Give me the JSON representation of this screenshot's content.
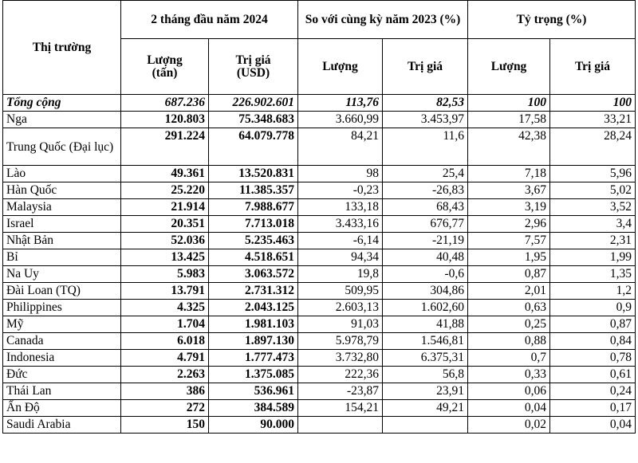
{
  "header": {
    "market": "Thị trường",
    "period": "2 tháng đầu năm 2024",
    "compare": "So với cùng kỳ năm 2023 (%)",
    "share": "Tỷ trọng (%)",
    "qty_line1": "Lượng",
    "qty_line2": "(tấn)",
    "val_line1": "Trị giá",
    "val_line2": "(USD)",
    "qty": "Lượng",
    "val": "Trị giá"
  },
  "rows": [
    {
      "market": "Tổng cộng",
      "qty": "687.236",
      "value": "226.902.601",
      "chg_qty": "113,76",
      "chg_val": "82,53",
      "share_qty": "100",
      "share_val": "100"
    },
    {
      "market": "Nga",
      "qty": "120.803",
      "value": "75.348.683",
      "chg_qty": "3.660,99",
      "chg_val": "3.453,97",
      "share_qty": "17,58",
      "share_val": "33,21"
    },
    {
      "market": "Trung Quốc (Đại lục)",
      "qty": "291.224",
      "value": "64.079.778",
      "chg_qty": "84,21",
      "chg_val": "11,6",
      "share_qty": "42,38",
      "share_val": "28,24"
    },
    {
      "market": "Lào",
      "qty": "49.361",
      "value": "13.520.831",
      "chg_qty": "98",
      "chg_val": "25,4",
      "share_qty": "7,18",
      "share_val": "5,96"
    },
    {
      "market": "Hàn Quốc",
      "qty": "25.220",
      "value": "11.385.357",
      "chg_qty": "-0,23",
      "chg_val": "-26,83",
      "share_qty": "3,67",
      "share_val": "5,02"
    },
    {
      "market": "Malaysia",
      "qty": "21.914",
      "value": "7.988.677",
      "chg_qty": "133,18",
      "chg_val": "68,43",
      "share_qty": "3,19",
      "share_val": "3,52"
    },
    {
      "market": "Israel",
      "qty": "20.351",
      "value": "7.713.018",
      "chg_qty": "3.433,16",
      "chg_val": "676,77",
      "share_qty": "2,96",
      "share_val": "3,4"
    },
    {
      "market": "Nhật Bản",
      "qty": "52.036",
      "value": "5.235.463",
      "chg_qty": "-6,14",
      "chg_val": "-21,19",
      "share_qty": "7,57",
      "share_val": "2,31"
    },
    {
      "market": "Bỉ",
      "qty": "13.425",
      "value": "4.518.651",
      "chg_qty": "94,34",
      "chg_val": "40,48",
      "share_qty": "1,95",
      "share_val": "1,99"
    },
    {
      "market": "Na Uy",
      "qty": "5.983",
      "value": "3.063.572",
      "chg_qty": "19,8",
      "chg_val": "-0,6",
      "share_qty": "0,87",
      "share_val": "1,35"
    },
    {
      "market": "Đài Loan (TQ)",
      "qty": "13.791",
      "value": "2.731.312",
      "chg_qty": "509,95",
      "chg_val": "304,86",
      "share_qty": "2,01",
      "share_val": "1,2"
    },
    {
      "market": "Philippines",
      "qty": "4.325",
      "value": "2.043.125",
      "chg_qty": "2.603,13",
      "chg_val": "1.602,60",
      "share_qty": "0,63",
      "share_val": "0,9"
    },
    {
      "market": "Mỹ",
      "qty": "1.704",
      "value": "1.981.103",
      "chg_qty": "91,03",
      "chg_val": "41,88",
      "share_qty": "0,25",
      "share_val": "0,87"
    },
    {
      "market": "Canada",
      "qty": "6.018",
      "value": "1.897.130",
      "chg_qty": "5.978,79",
      "chg_val": "1.546,81",
      "share_qty": "0,88",
      "share_val": "0,84"
    },
    {
      "market": "Indonesia",
      "qty": "4.791",
      "value": "1.777.473",
      "chg_qty": "3.732,80",
      "chg_val": "6.375,31",
      "share_qty": "0,7",
      "share_val": "0,78"
    },
    {
      "market": "Đức",
      "qty": "2.263",
      "value": "1.375.085",
      "chg_qty": "222,36",
      "chg_val": "56,8",
      "share_qty": "0,33",
      "share_val": "0,61"
    },
    {
      "market": "Thái Lan",
      "qty": "386",
      "value": "536.961",
      "chg_qty": "-23,87",
      "chg_val": "23,91",
      "share_qty": "0,06",
      "share_val": "0,24"
    },
    {
      "market": "Ấn Độ",
      "qty": "272",
      "value": "384.589",
      "chg_qty": "154,21",
      "chg_val": "49,21",
      "share_qty": "0,04",
      "share_val": "0,17"
    },
    {
      "market": "Saudi Arabia",
      "qty": "150",
      "value": "90.000",
      "chg_qty": "",
      "chg_val": "",
      "share_qty": "0,02",
      "share_val": "0,04"
    }
  ]
}
